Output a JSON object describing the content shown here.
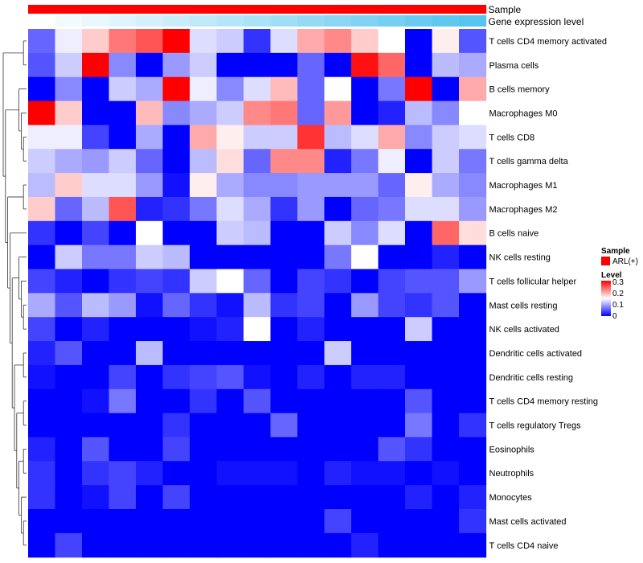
{
  "chart_data": {
    "type": "heatmap",
    "title": "",
    "rows": [
      "T cells CD4 memory activated",
      "Plasma cells",
      "B cells memory",
      "Macrophages M0",
      "T cells CD8",
      "T cells gamma delta",
      "Macrophages M1",
      "Macrophages M2",
      "B cells naive",
      "NK cells resting",
      "T cells follicular helper",
      "Mast cells resting",
      "NK cells activated",
      "Dendritic cells activated",
      "Dendritic cells resting",
      "T cells CD4 memory resting",
      "T cells regulatory  Tregs",
      "Eosinophils",
      "Neutrophils",
      "Monocytes",
      "Mast cells activated",
      "T cells CD4 naive"
    ],
    "n_columns": 17,
    "values": [
      [
        0.06,
        0.14,
        0.18,
        0.23,
        0.25,
        0.3,
        0.13,
        0.12,
        0.03,
        0.13,
        0.2,
        0.22,
        0.18,
        0.15,
        0.0,
        0.16,
        0.05
      ],
      [
        0.05,
        0.12,
        0.3,
        0.08,
        0.0,
        0.09,
        0.12,
        0.0,
        0.0,
        0.0,
        0.06,
        0.0,
        0.29,
        0.24,
        0.0,
        0.11,
        0.1
      ],
      [
        0.0,
        0.08,
        0.0,
        0.12,
        0.1,
        0.3,
        0.14,
        0.08,
        0.13,
        0.19,
        0.06,
        0.15,
        0.0,
        0.07,
        0.3,
        0.0,
        0.2
      ],
      [
        0.3,
        0.18,
        0.0,
        0.0,
        0.19,
        0.08,
        0.1,
        0.12,
        0.22,
        0.23,
        0.06,
        0.21,
        0.0,
        0.02,
        0.11,
        0.08,
        0.15
      ],
      [
        0.14,
        0.14,
        0.04,
        0.0,
        0.1,
        0.0,
        0.2,
        0.16,
        0.12,
        0.12,
        0.27,
        0.11,
        0.13,
        0.2,
        0.08,
        0.12,
        0.13
      ],
      [
        0.12,
        0.1,
        0.09,
        0.12,
        0.06,
        0.0,
        0.11,
        0.17,
        0.06,
        0.22,
        0.22,
        0.02,
        0.07,
        0.14,
        0.0,
        0.12,
        0.07
      ],
      [
        0.11,
        0.18,
        0.13,
        0.13,
        0.09,
        0.01,
        0.16,
        0.1,
        0.08,
        0.08,
        0.09,
        0.09,
        0.09,
        0.06,
        0.16,
        0.1,
        0.08
      ],
      [
        0.18,
        0.06,
        0.11,
        0.25,
        0.02,
        0.03,
        0.07,
        0.13,
        0.1,
        0.03,
        0.09,
        0.0,
        0.06,
        0.07,
        0.13,
        0.13,
        0.09
      ],
      [
        0.03,
        0.0,
        0.04,
        0.0,
        0.15,
        0.0,
        0.0,
        0.12,
        0.11,
        0.0,
        0.0,
        0.12,
        0.08,
        0.13,
        0.0,
        0.24,
        0.17
      ],
      [
        0.0,
        0.12,
        0.07,
        0.07,
        0.12,
        0.11,
        0.0,
        0.0,
        0.0,
        0.0,
        0.0,
        0.07,
        0.15,
        0.0,
        0.0,
        0.02,
        0.0
      ],
      [
        0.04,
        0.02,
        0.0,
        0.03,
        0.04,
        0.03,
        0.12,
        0.15,
        0.06,
        0.0,
        0.04,
        0.03,
        0.0,
        0.04,
        0.05,
        0.05,
        0.09
      ],
      [
        0.1,
        0.05,
        0.11,
        0.09,
        0.01,
        0.06,
        0.03,
        0.01,
        0.11,
        0.03,
        0.04,
        0.0,
        0.09,
        0.04,
        0.03,
        0.05,
        0.0
      ],
      [
        0.04,
        0.0,
        0.02,
        0.0,
        0.0,
        0.0,
        0.01,
        0.02,
        0.15,
        0.0,
        0.02,
        0.0,
        0.0,
        0.0,
        0.12,
        0.0,
        0.0
      ],
      [
        0.02,
        0.05,
        0.0,
        0.0,
        0.11,
        0.0,
        0.0,
        0.0,
        0.0,
        0.0,
        0.0,
        0.12,
        0.0,
        0.0,
        0.0,
        0.0,
        0.0
      ],
      [
        0.01,
        0.0,
        0.0,
        0.04,
        0.0,
        0.03,
        0.04,
        0.05,
        0.01,
        0.0,
        0.02,
        0.0,
        0.02,
        0.02,
        0.0,
        0.0,
        0.0
      ],
      [
        0.0,
        0.0,
        0.01,
        0.07,
        0.0,
        0.0,
        0.03,
        0.0,
        0.05,
        0.0,
        0.0,
        0.0,
        0.0,
        0.0,
        0.05,
        0.0,
        0.0
      ],
      [
        0.0,
        0.0,
        0.0,
        0.0,
        0.0,
        0.03,
        0.0,
        0.0,
        0.0,
        0.06,
        0.0,
        0.0,
        0.0,
        0.0,
        0.07,
        0.0,
        0.03
      ],
      [
        0.02,
        0.0,
        0.05,
        0.0,
        0.0,
        0.04,
        0.0,
        0.0,
        0.0,
        0.0,
        0.0,
        0.0,
        0.0,
        0.05,
        0.03,
        0.0,
        0.0
      ],
      [
        0.03,
        0.0,
        0.03,
        0.04,
        0.02,
        0.0,
        0.0,
        0.01,
        0.01,
        0.01,
        0.0,
        0.02,
        0.01,
        0.01,
        0.0,
        0.01,
        0.0
      ],
      [
        0.03,
        0.0,
        0.01,
        0.04,
        0.0,
        0.04,
        0.0,
        0.0,
        0.0,
        0.0,
        0.0,
        0.0,
        0.0,
        0.0,
        0.02,
        0.0,
        0.02
      ],
      [
        0.0,
        0.0,
        0.0,
        0.0,
        0.0,
        0.0,
        0.0,
        0.0,
        0.0,
        0.0,
        0.0,
        0.04,
        0.0,
        0.0,
        0.0,
        0.0,
        0.03
      ],
      [
        0.0,
        0.04,
        0.0,
        0.0,
        0.0,
        0.0,
        0.0,
        0.0,
        0.0,
        0.0,
        0.0,
        0.0,
        0.02,
        0.0,
        0.0,
        0.0,
        0.0
      ]
    ],
    "annotations": [
      {
        "name": "Sample",
        "kind": "categorical",
        "values_all": "ARL(+)",
        "color": "#ff0000"
      },
      {
        "name": "Gene expression level",
        "kind": "gradient",
        "from_color": "#ffffff",
        "to_color": "#55c4ee"
      }
    ],
    "color_scale": {
      "min": 0,
      "max": 0.3,
      "low": "#0000ff",
      "mid": "#ffffff",
      "high": "#ff0000",
      "mid_value": 0.15
    },
    "legend": {
      "sample_title": "Sample",
      "sample_item": "ARL(+)",
      "level_title": "Level",
      "level_ticks": [
        "0.3",
        "0.2",
        "0.1",
        "0"
      ]
    },
    "dendrogram": "rows clustered (left side)"
  }
}
